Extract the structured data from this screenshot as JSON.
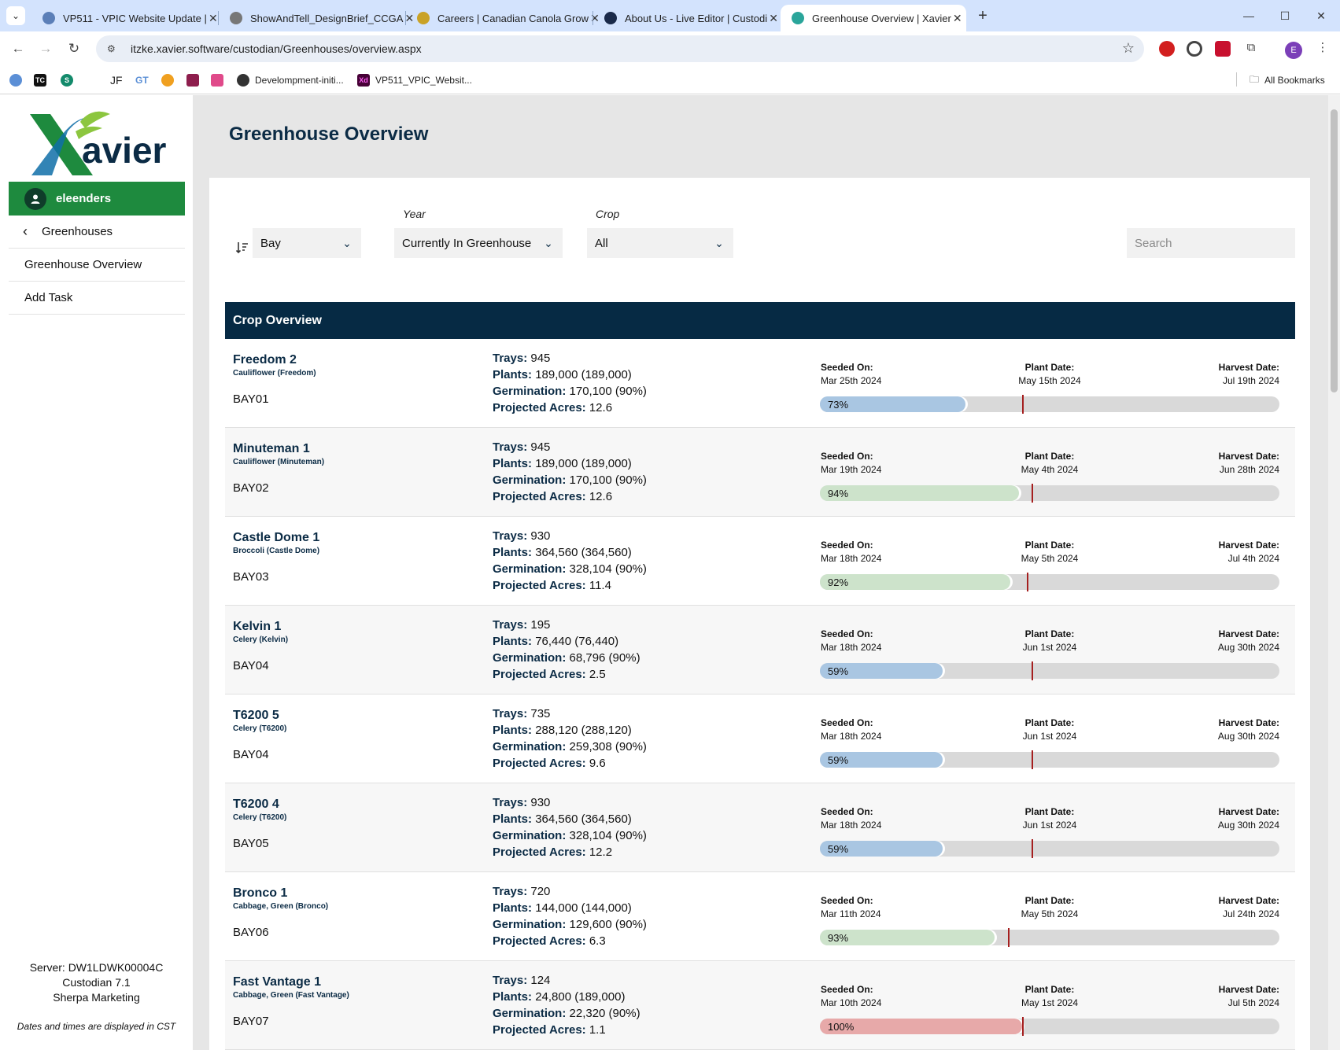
{
  "browser": {
    "tabs": [
      {
        "label": "VP511 - VPIC Website Update |",
        "color": "#5b7fb8"
      },
      {
        "label": "ShowAndTell_DesignBrief_CCGA",
        "color": "#777777"
      },
      {
        "label": "Careers | Canadian Canola Grow",
        "color": "#c9a227"
      },
      {
        "label": "About Us - Live Editor | Custodi",
        "color": "#1a2a4a"
      },
      {
        "label": "Greenhouse Overview | Xavier",
        "color": "#2aa59a"
      }
    ],
    "url": "itzke.xavier.software/custodian/Greenhouses/overview.aspx",
    "profile_initial": "E",
    "bookmarks": [
      {
        "label": "",
        "abbr": "",
        "color": "#5b8fd6"
      },
      {
        "label": "",
        "abbr": "TC",
        "color": "#111111"
      },
      {
        "label": "",
        "abbr": "S",
        "color": "#138a6b"
      },
      {
        "label": "JF",
        "abbr": "",
        "color": ""
      },
      {
        "label": "GT",
        "abbr": "",
        "color": ""
      },
      {
        "label": "",
        "abbr": "",
        "color": "#f0a020"
      },
      {
        "label": "",
        "abbr": "",
        "color": "#8e1e4d"
      },
      {
        "label": "",
        "abbr": "",
        "color": "#e04a8a"
      },
      {
        "label": "Develompment-initi...",
        "abbr": "",
        "color": "#333333"
      },
      {
        "label": "VP511_VPIC_Websit...",
        "abbr": "Xd",
        "color": "#470137"
      }
    ],
    "all_bookmarks": "All Bookmarks"
  },
  "sidebar": {
    "logo_text": "avier",
    "username": "eleenders",
    "back_label": "Greenhouses",
    "items": [
      "Greenhouse Overview",
      "Add Task"
    ],
    "server": "Server: DW1LDWK00004C",
    "version": "Custodian 7.1",
    "company": "Sherpa Marketing",
    "tz_note": "Dates and times are displayed in CST"
  },
  "page": {
    "title": "Greenhouse Overview",
    "filters": {
      "sort_value": "Bay",
      "year_label": "Year",
      "year_value": "Currently In Greenhouse",
      "crop_label": "Crop",
      "crop_value": "All",
      "search_placeholder": "Search"
    },
    "table_title": "Crop Overview",
    "labels": {
      "trays": "Trays:",
      "plants": "Plants:",
      "germination": "Germination:",
      "acres": "Projected Acres:",
      "seeded": "Seeded On:",
      "plant_date": "Plant Date:",
      "harvest": "Harvest Date:"
    },
    "colors": {
      "blue": "#a9c6e2",
      "green": "#cde3cb",
      "red": "#e7a9a9"
    },
    "crops": [
      {
        "name": "Freedom 2",
        "variety": "Cauliflower (Freedom)",
        "bay": "BAY01",
        "trays": "945",
        "plants": "189,000 (189,000)",
        "germination": "170,100 (90%)",
        "acres": "12.6",
        "seeded": "Mar 25th 2024",
        "plant_date": "May 15th 2024",
        "harvest": "Jul 19th 2024",
        "progress": 0.73,
        "progress_label": "73%",
        "marker": 0.44,
        "color": "blue"
      },
      {
        "name": "Minuteman 1",
        "variety": "Cauliflower (Minuteman)",
        "bay": "BAY02",
        "trays": "945",
        "plants": "189,000 (189,000)",
        "germination": "170,100 (90%)",
        "acres": "12.6",
        "seeded": "Mar 19th 2024",
        "plant_date": "May 4th 2024",
        "harvest": "Jun 28th 2024",
        "progress": 0.94,
        "progress_label": "94%",
        "marker": 0.46,
        "color": "green"
      },
      {
        "name": "Castle Dome 1",
        "variety": "Broccoli (Castle Dome)",
        "bay": "BAY03",
        "trays": "930",
        "plants": "364,560 (364,560)",
        "germination": "328,104 (90%)",
        "acres": "11.4",
        "seeded": "Mar 18th 2024",
        "plant_date": "May 5th 2024",
        "harvest": "Jul 4th 2024",
        "progress": 0.92,
        "progress_label": "92%",
        "marker": 0.45,
        "color": "green"
      },
      {
        "name": "Kelvin 1",
        "variety": "Celery (Kelvin)",
        "bay": "BAY04",
        "trays": "195",
        "plants": "76,440 (76,440)",
        "germination": "68,796 (90%)",
        "acres": "2.5",
        "seeded": "Mar 18th 2024",
        "plant_date": "Jun 1st 2024",
        "harvest": "Aug 30th 2024",
        "progress": 0.59,
        "progress_label": "59%",
        "marker": 0.46,
        "color": "blue"
      },
      {
        "name": "T6200 5",
        "variety": "Celery (T6200)",
        "bay": "BAY04",
        "trays": "735",
        "plants": "288,120 (288,120)",
        "germination": "259,308 (90%)",
        "acres": "9.6",
        "seeded": "Mar 18th 2024",
        "plant_date": "Jun 1st 2024",
        "harvest": "Aug 30th 2024",
        "progress": 0.59,
        "progress_label": "59%",
        "marker": 0.46,
        "color": "blue"
      },
      {
        "name": "T6200 4",
        "variety": "Celery (T6200)",
        "bay": "BAY05",
        "trays": "930",
        "plants": "364,560 (364,560)",
        "germination": "328,104 (90%)",
        "acres": "12.2",
        "seeded": "Mar 18th 2024",
        "plant_date": "Jun 1st 2024",
        "harvest": "Aug 30th 2024",
        "progress": 0.59,
        "progress_label": "59%",
        "marker": 0.46,
        "color": "blue"
      },
      {
        "name": "Bronco 1",
        "variety": "Cabbage, Green (Bronco)",
        "bay": "BAY06",
        "trays": "720",
        "plants": "144,000 (144,000)",
        "germination": "129,600 (90%)",
        "acres": "6.3",
        "seeded": "Mar 11th 2024",
        "plant_date": "May 5th 2024",
        "harvest": "Jul 24th 2024",
        "progress": 0.93,
        "progress_label": "93%",
        "marker": 0.41,
        "color": "green"
      },
      {
        "name": "Fast Vantage 1",
        "variety": "Cabbage, Green (Fast Vantage)",
        "bay": "BAY07",
        "trays": "124",
        "plants": "24,800 (189,000)",
        "germination": "22,320 (90%)",
        "acres": "1.1",
        "seeded": "Mar 10th 2024",
        "plant_date": "May 1st 2024",
        "harvest": "Jul 5th 2024",
        "progress": 1.0,
        "progress_label": "100%",
        "marker": 0.44,
        "color": "red"
      }
    ]
  }
}
